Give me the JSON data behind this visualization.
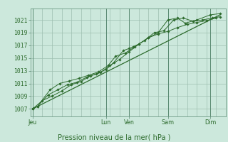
{
  "bg_color": "#cce8dc",
  "plot_bg_color": "#cce8dc",
  "grid_color": "#9dbfb0",
  "line_color": "#2d6b2d",
  "dark_vline_color": "#5a8a72",
  "ylabel_ticks": [
    1007,
    1009,
    1011,
    1013,
    1015,
    1017,
    1019,
    1021
  ],
  "ylim": [
    1005.8,
    1022.8
  ],
  "xlim": [
    -0.1,
    10.0
  ],
  "xlabel": "Pression niveau de la mer( hPa )",
  "xlabel_fontsize": 7,
  "tick_fontsize": 5.8,
  "x_day_labels": [
    "Jeu",
    "Lun",
    "Ven",
    "Sam",
    "Dim"
  ],
  "x_day_positions": [
    0.0,
    3.8,
    5.0,
    7.0,
    9.2
  ],
  "series1_x": [
    0.0,
    0.25,
    0.8,
    1.3,
    1.8,
    2.3,
    2.8,
    3.3,
    3.8,
    4.2,
    4.7,
    5.0,
    5.2,
    5.5,
    6.0,
    6.5,
    7.0,
    7.5,
    7.9,
    8.5,
    9.2,
    9.7
  ],
  "series1_y": [
    1007.0,
    1007.4,
    1009.2,
    1010.0,
    1010.8,
    1011.2,
    1012.0,
    1012.5,
    1013.2,
    1014.3,
    1016.2,
    1016.5,
    1016.8,
    1017.2,
    1018.2,
    1019.0,
    1021.0,
    1021.3,
    1020.5,
    1021.0,
    1021.8,
    1022.0
  ],
  "series2_x": [
    0.0,
    0.25,
    0.9,
    1.4,
    1.9,
    2.4,
    2.9,
    3.4,
    3.9,
    4.3,
    4.8,
    5.3,
    5.8,
    6.3,
    6.8,
    7.3,
    7.8,
    8.3,
    8.8,
    9.3,
    9.7
  ],
  "series2_y": [
    1007.0,
    1007.4,
    1010.0,
    1011.0,
    1011.4,
    1011.8,
    1012.3,
    1012.8,
    1013.8,
    1015.3,
    1015.8,
    1016.8,
    1017.8,
    1019.0,
    1019.3,
    1021.0,
    1021.3,
    1020.8,
    1021.0,
    1021.3,
    1021.5
  ],
  "series3_x": [
    0.0,
    0.5,
    1.0,
    1.5,
    2.0,
    2.5,
    3.0,
    3.5,
    4.0,
    4.5,
    5.0,
    5.5,
    6.0,
    6.5,
    7.0,
    7.5,
    8.0,
    8.5,
    9.0,
    9.5
  ],
  "series3_y": [
    1007.0,
    1008.3,
    1009.0,
    1009.8,
    1010.8,
    1011.3,
    1012.2,
    1012.7,
    1013.8,
    1014.8,
    1016.0,
    1017.2,
    1018.2,
    1018.8,
    1019.2,
    1019.8,
    1020.3,
    1020.6,
    1020.9,
    1021.3
  ],
  "trend_x": [
    0.0,
    9.7
  ],
  "trend_y": [
    1007.0,
    1021.8
  ],
  "minor_vlines": [
    0.5,
    1.0,
    1.5,
    2.0,
    2.5,
    3.0,
    3.5,
    4.0,
    4.5,
    5.0,
    5.5,
    6.0,
    6.5,
    7.0,
    7.5,
    8.0,
    8.5,
    9.0,
    9.5
  ]
}
